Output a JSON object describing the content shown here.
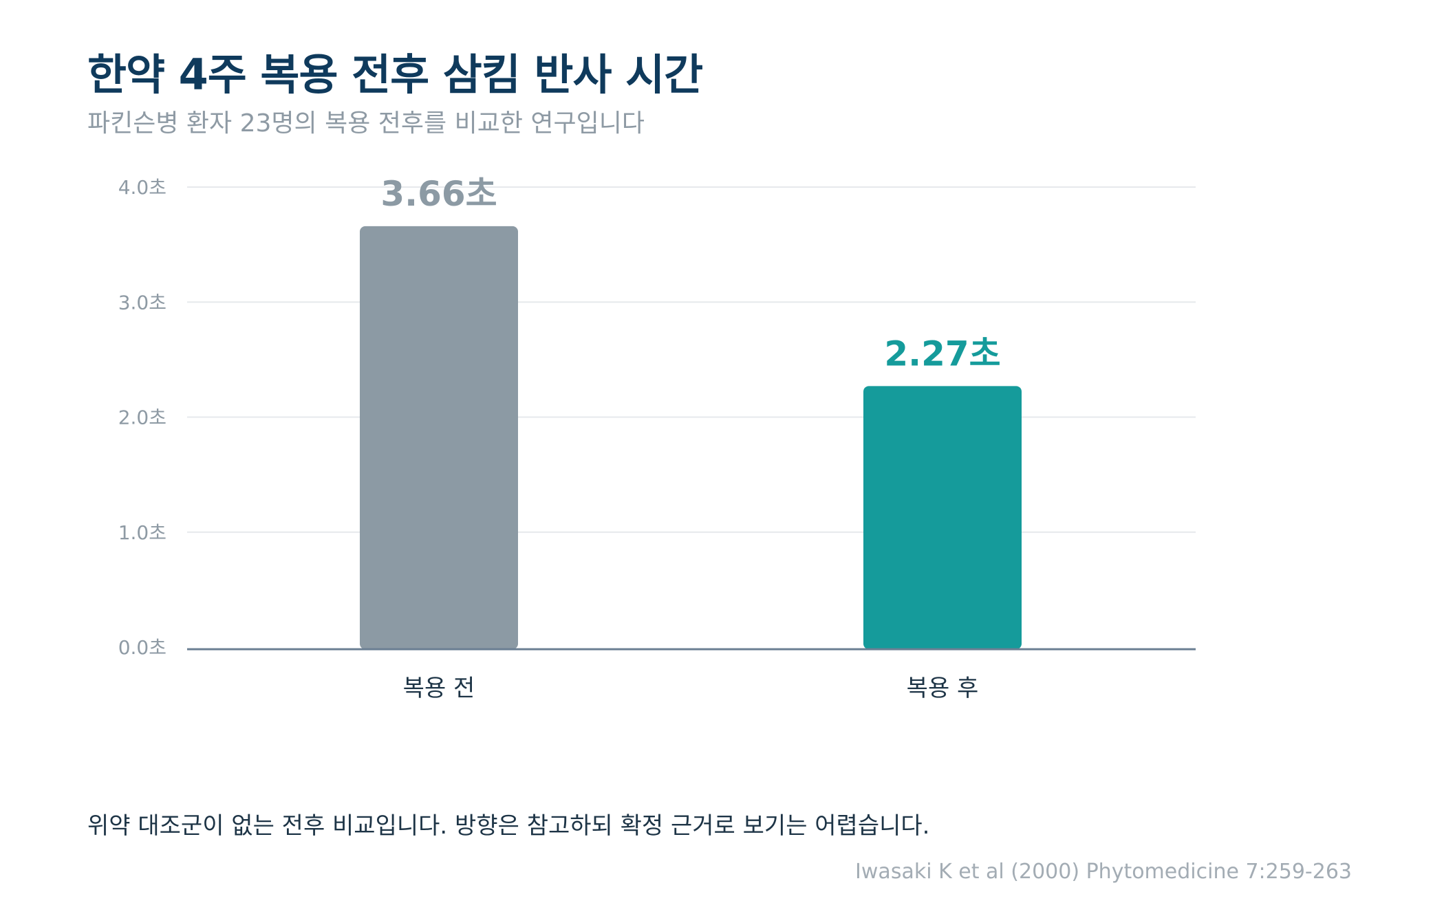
{
  "title": "한약 4주 복용 전후 삼킴 반사 시간",
  "subtitle": "파킨슨병 환자 23명의 복용 전후를 비교한 연구입니다",
  "note": "위약 대조군이 없는 전후 비교입니다. 방향은 참고하되 확정 근거로 보기는 어렵습니다.",
  "source": "Iwasaki K et al (2000) Phytomedicine 7:259-263",
  "colors": {
    "before": "#8c9aa4",
    "after": "#159b9b",
    "before_label": "#8c9aa4",
    "after_label": "#159b9b",
    "grid": "#e6e9ec",
    "baseline": "#6b7f93"
  },
  "chart_data": {
    "type": "bar",
    "categories": [
      "복용 전",
      "복용 후"
    ],
    "values": [
      3.66,
      2.27
    ],
    "value_labels": [
      "3.66초",
      "2.27초"
    ],
    "yticks": [
      0.0,
      1.0,
      2.0,
      3.0,
      4.0
    ],
    "ytick_labels": [
      "0.0초",
      "1.0초",
      "2.0초",
      "3.0초",
      "4.0초"
    ],
    "ylim": [
      0,
      4
    ],
    "grid": true
  }
}
